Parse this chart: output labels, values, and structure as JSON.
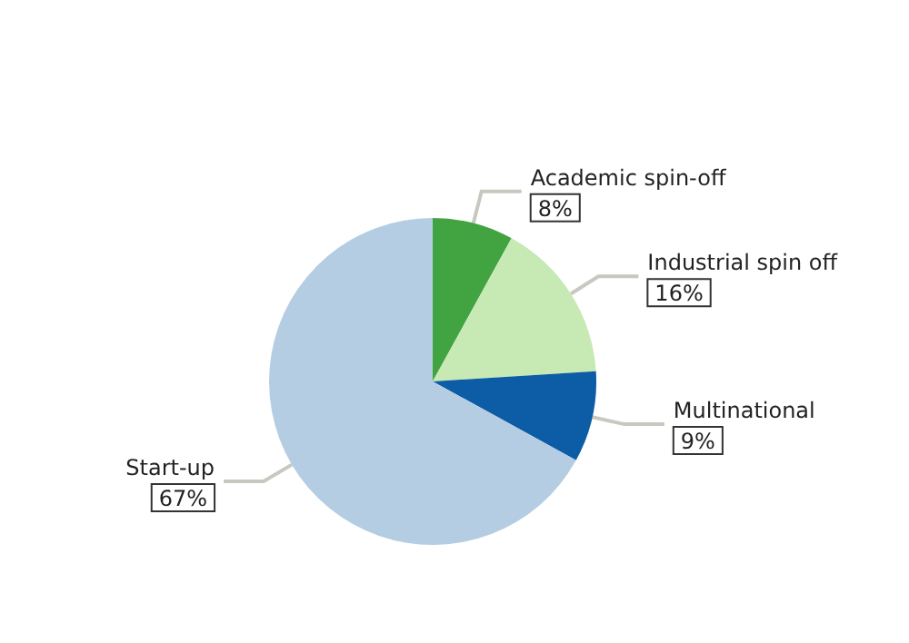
{
  "chart_data": {
    "type": "pie",
    "categories": [
      "Academic spin-off",
      "Industrial spin off",
      "Multinational",
      "Start-up"
    ],
    "values": [
      8,
      16,
      9,
      67
    ],
    "colors": [
      "#41a441",
      "#c7e9b4",
      "#0d5ca6",
      "#b4cde2"
    ],
    "value_labels": [
      "8%",
      "16%",
      "9%",
      "67%"
    ]
  }
}
